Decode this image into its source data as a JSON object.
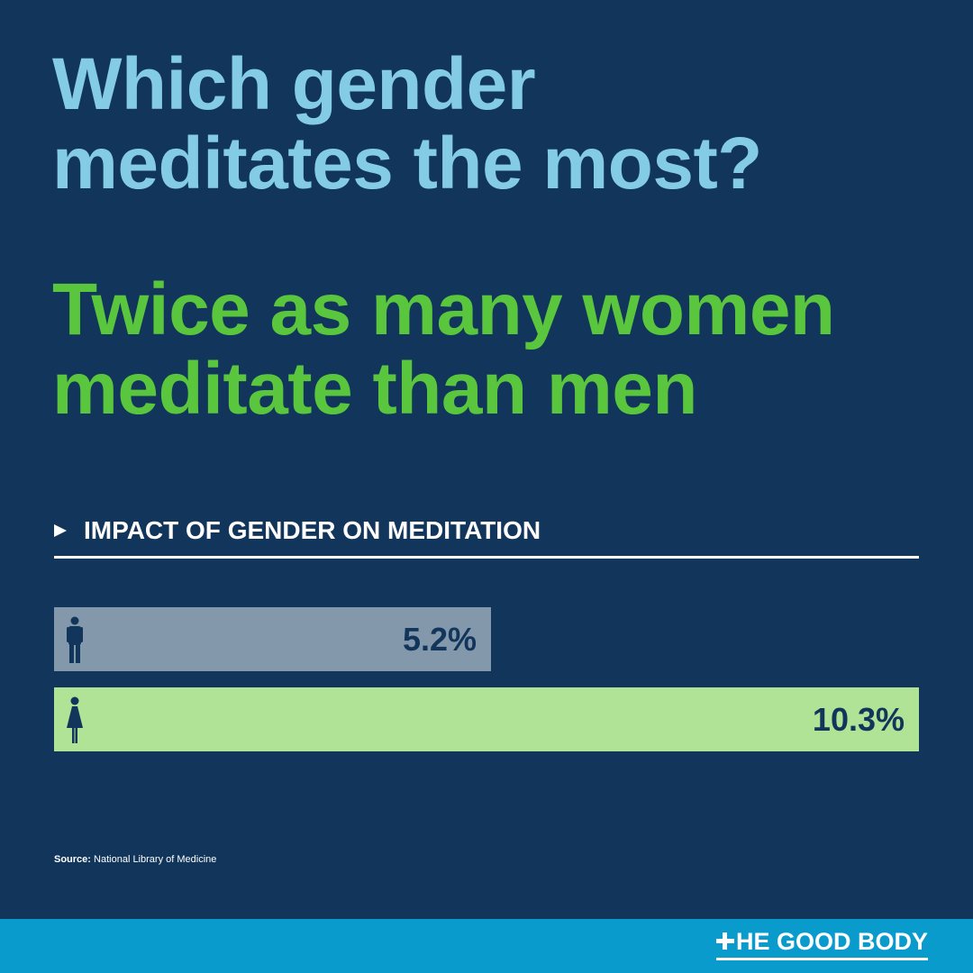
{
  "question": {
    "line1": "Which gender",
    "line2": "meditates the most?"
  },
  "answer": {
    "line1": "Twice as many women",
    "line2": "meditate than men"
  },
  "chart_data": {
    "type": "bar",
    "title": "IMPACT OF GENDER ON MEDITATION",
    "unit": "%",
    "categories": [
      "men-icon",
      "women-icon"
    ],
    "values": [
      5.2,
      10.3
    ],
    "data_labels": [
      "5.2%",
      "10.3%"
    ],
    "colors": [
      "#8498ab",
      "#b1e397"
    ],
    "orientation": "horizontal",
    "grid": false
  },
  "source": {
    "label": "Source:",
    "text": " National Library of Medicine"
  },
  "brand": {
    "name": "HE GOOD BODY"
  },
  "colors": {
    "background": "#12355b",
    "question": "#84cbe6",
    "answer": "#5ac63d",
    "footer": "#0a9bcd"
  }
}
